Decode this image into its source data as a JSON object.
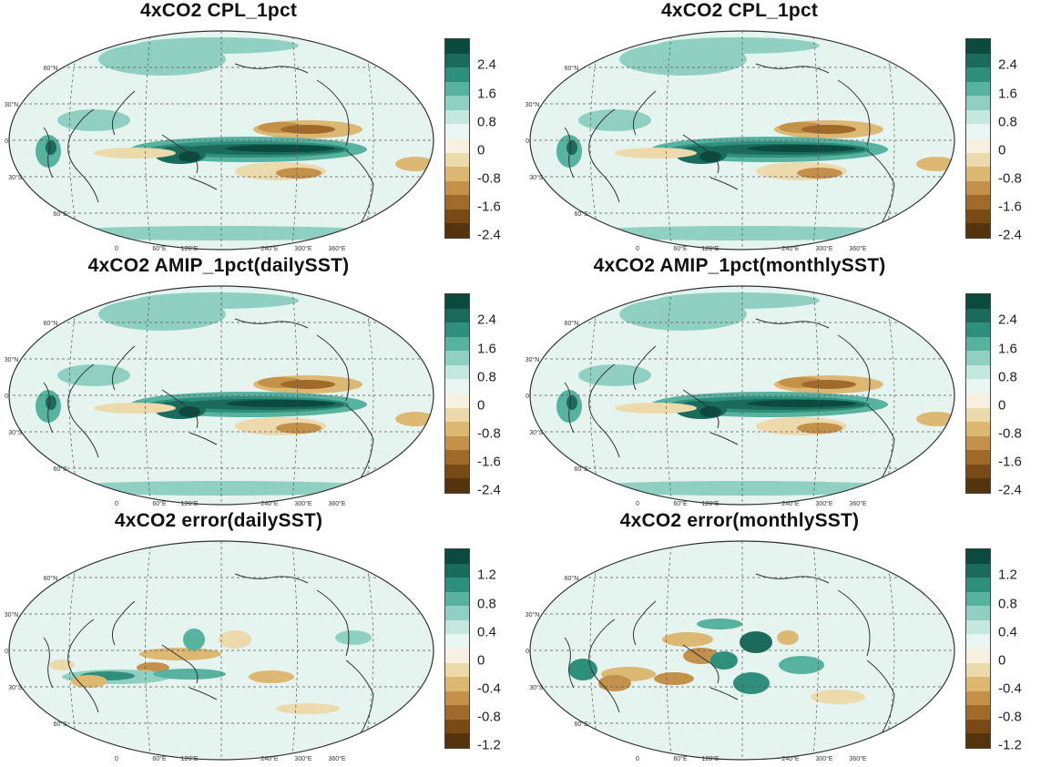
{
  "panels": [
    {
      "title": "4xCO2 CPL_1pct",
      "colorbar_ticks": [
        "2.4",
        "1.6",
        "0.8",
        "0",
        "-0.8",
        "-1.6",
        "-2.4"
      ]
    },
    {
      "title": "4xCO2 CPL_1pct",
      "colorbar_ticks": [
        "2.4",
        "1.6",
        "0.8",
        "0",
        "-0.8",
        "-1.6",
        "-2.4"
      ]
    },
    {
      "title": "4xCO2 AMIP_1pct(dailySST)",
      "colorbar_ticks": [
        "2.4",
        "1.6",
        "0.8",
        "0",
        "-0.8",
        "-1.6",
        "-2.4"
      ]
    },
    {
      "title": "4xCO2 AMIP_1pct(monthlySST)",
      "colorbar_ticks": [
        "2.4",
        "1.6",
        "0.8",
        "0",
        "-0.8",
        "-1.6",
        "-2.4"
      ]
    },
    {
      "title": "4xCO2 error(dailySST)",
      "colorbar_ticks": [
        "1.2",
        "0.8",
        "0.4",
        "0",
        "-0.4",
        "-0.8",
        "-1.2"
      ]
    },
    {
      "title": "4xCO2 error(monthlySST)",
      "colorbar_ticks": [
        "1.2",
        "0.8",
        "0.4",
        "0",
        "-0.4",
        "-0.8",
        "-1.2"
      ]
    }
  ],
  "lat_labels": [
    "60°N",
    "30°N",
    "0",
    "30°S",
    "60°S"
  ],
  "lon_labels": [
    "0",
    "60°E",
    "120°E",
    "240°E",
    "300°E",
    "360°E"
  ],
  "colorbar_colors": [
    "#0b4a3e",
    "#1a6b5c",
    "#2f8f7d",
    "#58b2a0",
    "#8fd0c2",
    "#c4e8e0",
    "#eaf6f3",
    "#f8f1e1",
    "#ecd9ac",
    "#dcb873",
    "#c4914a",
    "#a06a2a",
    "#7a4a16",
    "#55330c"
  ]
}
